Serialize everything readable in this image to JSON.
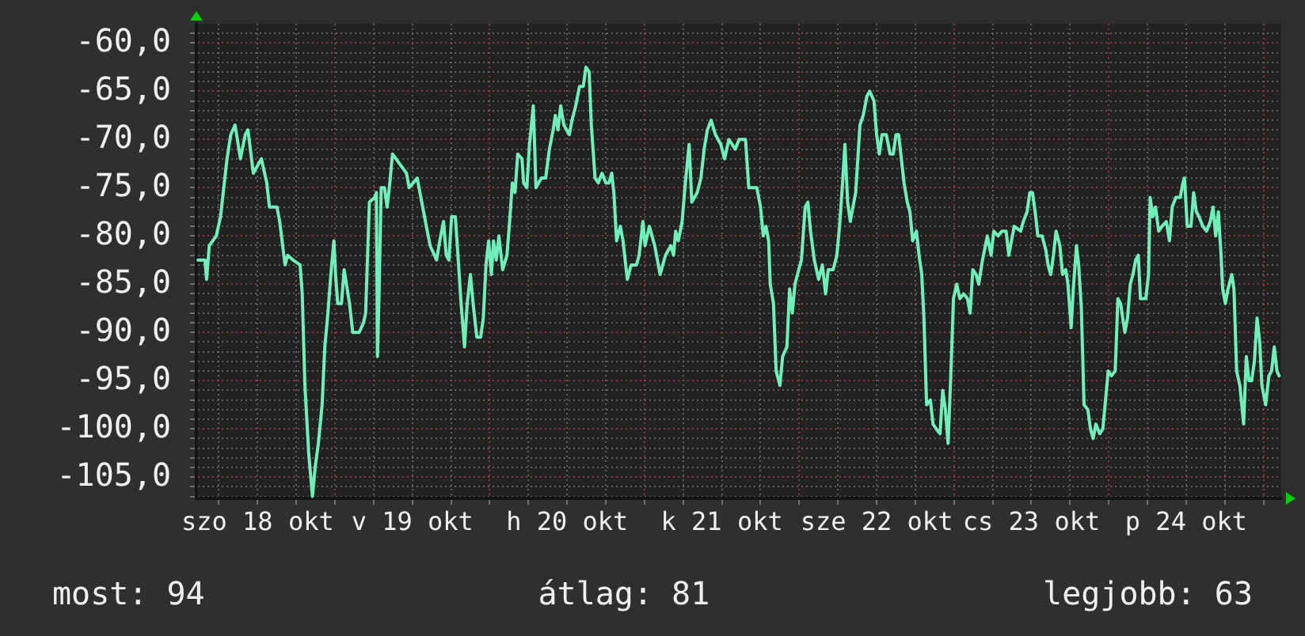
{
  "chart_data": {
    "type": "line",
    "color": "#70f0b8",
    "grid": true,
    "annotations": [
      "most: 94",
      "átlag: 81",
      "legjobb: 63"
    ],
    "xlim": [
      "--10-18T02:30",
      "--10-25T02:45"
    ],
    "xticks": [
      {
        "value": "--10-18T06:00",
        "label": null
      },
      {
        "value": "--10-18T12:00",
        "label": "szo 18 okt"
      },
      {
        "value": "--10-18T18:00",
        "label": null
      },
      {
        "value": "--10-19T00:00",
        "label": null
      },
      {
        "value": "--10-19T06:00",
        "label": null
      },
      {
        "value": "--10-19T12:00",
        "label": "v 19 okt"
      },
      {
        "value": "--10-19T18:00",
        "label": null
      },
      {
        "value": "--10-20T00:00",
        "label": null
      },
      {
        "value": "--10-20T06:00",
        "label": null
      },
      {
        "value": "--10-20T12:00",
        "label": "h 20 okt"
      },
      {
        "value": "--10-20T18:00",
        "label": null
      },
      {
        "value": "--10-21T00:00",
        "label": null
      },
      {
        "value": "--10-21T06:00",
        "label": null
      },
      {
        "value": "--10-21T12:00",
        "label": "k 21 okt"
      },
      {
        "value": "--10-21T18:00",
        "label": null
      },
      {
        "value": "--10-22T00:00",
        "label": null
      },
      {
        "value": "--10-22T06:00",
        "label": null
      },
      {
        "value": "--10-22T12:00",
        "label": "sze 22 okt"
      },
      {
        "value": "--10-22T18:00",
        "label": null
      },
      {
        "value": "--10-23T00:00",
        "label": null
      },
      {
        "value": "--10-23T06:00",
        "label": null
      },
      {
        "value": "--10-23T12:00",
        "label": "cs 23 okt"
      },
      {
        "value": "--10-23T18:00",
        "label": null
      },
      {
        "value": "--10-24T00:00",
        "label": null
      },
      {
        "value": "--10-24T06:00",
        "label": null
      },
      {
        "value": "--10-24T12:00",
        "label": "p 24 okt"
      },
      {
        "value": "--10-24T18:00",
        "label": null
      },
      {
        "value": "--10-25T00:00",
        "label": null
      }
    ],
    "ylim": [
      -107.2,
      -58
    ],
    "yticks": [
      {
        "value": -107,
        "label": null
      },
      {
        "value": -106,
        "label": null
      },
      {
        "value": -105,
        "label": "-105,0"
      },
      {
        "value": -104,
        "label": null
      },
      {
        "value": -103,
        "label": null
      },
      {
        "value": -102,
        "label": null
      },
      {
        "value": -101,
        "label": null
      },
      {
        "value": -100,
        "label": "-100,0"
      },
      {
        "value": -99,
        "label": null
      },
      {
        "value": -98,
        "label": null
      },
      {
        "value": -97,
        "label": null
      },
      {
        "value": -96,
        "label": null
      },
      {
        "value": -95,
        "label": "-95,0"
      },
      {
        "value": -94,
        "label": null
      },
      {
        "value": -93,
        "label": null
      },
      {
        "value": -92,
        "label": null
      },
      {
        "value": -91,
        "label": null
      },
      {
        "value": -90,
        "label": "-90,0"
      },
      {
        "value": -89,
        "label": null
      },
      {
        "value": -88,
        "label": null
      },
      {
        "value": -87,
        "label": null
      },
      {
        "value": -86,
        "label": null
      },
      {
        "value": -85,
        "label": "-85,0"
      },
      {
        "value": -84,
        "label": null
      },
      {
        "value": -83,
        "label": null
      },
      {
        "value": -82,
        "label": null
      },
      {
        "value": -81,
        "label": null
      },
      {
        "value": -80,
        "label": "-80,0"
      },
      {
        "value": -79,
        "label": null
      },
      {
        "value": -78,
        "label": null
      },
      {
        "value": -77,
        "label": null
      },
      {
        "value": -76,
        "label": null
      },
      {
        "value": -75,
        "label": "-75,0"
      },
      {
        "value": -74,
        "label": null
      },
      {
        "value": -73,
        "label": null
      },
      {
        "value": -72,
        "label": null
      },
      {
        "value": -71,
        "label": null
      },
      {
        "value": -70,
        "label": "-70,0"
      },
      {
        "value": -69,
        "label": null
      },
      {
        "value": -68,
        "label": null
      },
      {
        "value": -67,
        "label": null
      },
      {
        "value": -66,
        "label": null
      },
      {
        "value": -65,
        "label": "-65,0"
      },
      {
        "value": -64,
        "label": null
      },
      {
        "value": -63,
        "label": null
      },
      {
        "value": -62,
        "label": null
      },
      {
        "value": -61,
        "label": null
      },
      {
        "value": -60,
        "label": "-60,0"
      },
      {
        "value": -59,
        "label": null
      }
    ],
    "x": [
      "--10-18T02:45",
      "--10-18T03:50",
      "--10-18T04:05",
      "--10-18T04:30",
      "--10-18T05:35",
      "--10-18T06:15",
      "--10-18T07:15",
      "--10-18T07:50",
      "--10-18T08:30",
      "--10-18T09:20",
      "--10-18T10:05",
      "--10-18T10:30",
      "--10-18T11:20",
      "--10-18T12:35",
      "--10-18T13:25",
      "--10-18T13:50",
      "--10-18T15:00",
      "--10-18T15:25",
      "--10-18T16:15",
      "--10-18T16:40",
      "--10-18T17:30",
      "--10-18T18:35",
      "--10-18T18:55",
      "--10-18T19:20",
      "--10-18T19:55",
      "--10-18T20:30",
      "--10-18T20:55",
      "--10-18T21:25",
      "--10-18T22:00",
      "--10-18T22:25",
      "--10-18T22:50",
      "--10-18T23:25",
      "--10-18T23:50",
      "--10-19T00:05",
      "--10-19T00:25",
      "--10-19T01:00",
      "--10-19T01:25",
      "--10-19T02:15",
      "--10-19T02:45",
      "--10-19T03:45",
      "--10-19T04:25",
      "--10-19T04:45",
      "--10-19T05:20",
      "--10-19T06:10",
      "--10-19T06:25",
      "--10-19T06:35",
      "--10-19T06:50",
      "--10-19T07:10",
      "--10-19T07:40",
      "--10-19T08:05",
      "--10-19T08:30",
      "--10-19T08:55",
      "--10-19T10:00",
      "--10-19T11:05",
      "--10-19T11:30",
      "--10-19T12:45",
      "--10-19T13:10",
      "--10-19T14:10",
      "--10-19T14:45",
      "--10-19T15:45",
      "--10-19T16:15",
      "--10-19T16:50",
      "--10-19T17:15",
      "--10-19T17:40",
      "--10-19T18:05",
      "--10-19T18:40",
      "--10-19T19:10",
      "--10-19T19:30",
      "--10-19T20:05",
      "--10-19T20:30",
      "--10-19T21:00",
      "--10-19T21:25",
      "--10-19T22:00",
      "--10-19T22:35",
      "--10-19T23:00",
      "--10-19T23:25",
      "--10-19T23:50",
      "--10-20T00:15",
      "--10-20T00:35",
      "--10-20T01:00",
      "--10-20T01:25",
      "--10-20T02:00",
      "--10-20T02:40",
      "--10-20T03:05",
      "--10-20T03:30",
      "--10-20T03:55",
      "--10-20T04:20",
      "--10-20T05:00",
      "--10-20T05:15",
      "--10-20T05:45",
      "--10-20T06:10",
      "--10-20T06:45",
      "--10-20T07:10",
      "--10-20T08:00",
      "--10-20T08:40",
      "--10-20T09:15",
      "--10-20T09:50",
      "--10-20T10:10",
      "--10-20T10:35",
      "--10-20T11:00",
      "--10-20T11:30",
      "--10-20T12:20",
      "--10-20T12:45",
      "--10-20T13:20",
      "--10-20T13:55",
      "--10-20T14:30",
      "--10-20T14:55",
      "--10-20T15:25",
      "--10-20T15:45",
      "--10-20T16:20",
      "--10-20T16:50",
      "--10-20T17:25",
      "--10-20T18:00",
      "--10-20T18:30",
      "--10-20T18:55",
      "--10-20T19:15",
      "--10-20T19:40",
      "--10-20T20:15",
      "--10-20T20:40",
      "--10-20T21:20",
      "--10-20T21:55",
      "--10-20T22:45",
      "--10-20T23:10",
      "--10-20T23:45",
      "--10-21T00:05",
      "--10-21T00:45",
      "--10-21T01:35",
      "--10-21T02:25",
      "--10-21T03:15",
      "--10-21T04:05",
      "--10-21T04:30",
      "--10-21T04:50",
      "--10-21T05:15",
      "--10-21T05:50",
      "--10-21T06:20",
      "--10-21T06:55",
      "--10-21T07:20",
      "--10-21T08:10",
      "--10-21T08:45",
      "--10-21T09:15",
      "--10-21T09:45",
      "--10-21T10:20",
      "--10-21T11:00",
      "--10-21T11:50",
      "--10-21T12:25",
      "--10-21T13:05",
      "--10-21T14:05",
      "--10-21T14:40",
      "--10-21T15:40",
      "--10-21T16:10",
      "--10-21T17:25",
      "--10-21T18:00",
      "--10-21T18:25",
      "--10-21T18:50",
      "--10-21T19:15",
      "--10-21T19:30",
      "--10-21T20:00",
      "--10-21T20:25",
      "--10-21T21:00",
      "--10-21T21:25",
      "--10-21T22:05",
      "--10-21T22:30",
      "--10-21T22:55",
      "--10-21T23:20",
      "--10-21T23:55",
      "--10-22T00:20",
      "--10-22T00:55",
      "--10-22T01:20",
      "--10-22T01:45",
      "--10-22T02:20",
      "--10-22T03:00",
      "--10-22T03:35",
      "--10-22T04:05",
      "--10-22T04:30",
      "--10-22T05:15",
      "--10-22T05:50",
      "--10-22T06:15",
      "--10-22T06:40",
      "--10-22T07:05",
      "--10-22T07:30",
      "--10-22T07:55",
      "--10-22T08:20",
      "--10-22T08:45",
      "--10-22T09:25",
      "--10-22T09:55",
      "--10-22T10:30",
      "--10-22T10:55",
      "--10-22T11:35",
      "--10-22T12:00",
      "--10-22T12:25",
      "--10-22T12:50",
      "--10-22T13:30",
      "--10-22T14:05",
      "--10-22T14:35",
      "--10-22T15:00",
      "--10-22T15:25",
      "--10-22T15:50",
      "--10-22T16:15",
      "--10-22T16:45",
      "--10-22T17:10",
      "--10-22T17:35",
      "--10-22T18:10",
      "--10-22T18:35",
      "--10-22T19:00",
      "--10-22T19:20",
      "--10-22T19:45",
      "--10-22T20:20",
      "--10-22T20:45",
      "--10-22T21:15",
      "--10-22T21:50",
      "--10-22T22:15",
      "--10-22T22:40",
      "--10-22T23:05",
      "--10-22T23:30",
      "--10-22T23:55",
      "--10-23T00:25",
      "--10-23T00:55",
      "--10-23T01:30",
      "--10-23T02:05",
      "--10-23T02:30",
      "--10-23T02:55",
      "--10-23T03:25",
      "--10-23T03:50",
      "--10-23T04:25",
      "--10-23T05:10",
      "--10-23T05:45",
      "--10-23T06:10",
      "--10-23T06:50",
      "--10-23T07:25",
      "--10-23T08:05",
      "--10-23T08:30",
      "--10-23T08:55",
      "--10-23T09:20",
      "--10-23T10:20",
      "--10-23T10:45",
      "--10-23T11:20",
      "--10-23T11:45",
      "--10-23T12:10",
      "--10-23T12:35",
      "--10-23T13:00",
      "--10-23T13:40",
      "--10-23T14:15",
      "--10-23T14:35",
      "--10-23T15:00",
      "--10-23T15:25",
      "--10-23T15:50",
      "--10-23T16:25",
      "--10-23T16:50",
      "--10-23T17:20",
      "--10-23T17:40",
      "--10-23T18:10",
      "--10-23T18:30",
      "--10-23T19:00",
      "--10-23T19:20",
      "--10-23T19:45",
      "--10-23T20:10",
      "--10-23T20:45",
      "--10-23T21:10",
      "--10-23T21:35",
      "--10-23T22:00",
      "--10-23T22:35",
      "--10-23T23:05",
      "--10-23T23:30",
      "--10-23T23:55",
      "--10-24T00:25",
      "--10-24T01:00",
      "--10-24T01:25",
      "--10-24T01:50",
      "--10-24T02:30",
      "--10-24T02:55",
      "--10-24T03:20",
      "--10-24T03:45",
      "--10-24T04:10",
      "--10-24T04:35",
      "--10-24T04:55",
      "--10-24T05:45",
      "--10-24T06:10",
      "--10-24T06:25",
      "--10-24T06:50",
      "--10-24T07:15",
      "--10-24T07:45",
      "--10-24T08:15",
      "--10-24T08:55",
      "--10-24T09:25",
      "--10-24T09:50",
      "--10-24T10:25",
      "--10-24T11:05",
      "--10-24T11:30",
      "--10-24T11:45",
      "--10-24T12:10",
      "--10-24T12:45",
      "--10-24T13:10",
      "--10-24T13:35",
      "--10-24T14:00",
      "--10-24T14:35",
      "--10-24T15:10",
      "--10-24T15:45",
      "--10-24T16:10",
      "--10-24T16:35",
      "--10-24T17:00",
      "--10-24T17:25",
      "--10-24T17:40",
      "--10-24T18:05",
      "--10-24T18:30",
      "--10-24T19:05",
      "--10-24T19:25",
      "--10-24T19:50",
      "--10-24T20:20",
      "--10-24T20:55",
      "--10-24T21:20",
      "--10-24T21:45",
      "--10-24T22:10",
      "--10-24T22:35",
      "--10-24T23:00",
      "--10-24T23:25",
      "--10-24T23:45",
      "--10-25T00:20",
      "--10-25T00:50",
      "--10-25T01:15",
      "--10-25T01:40",
      "--10-25T02:05",
      "--10-25T02:25"
    ],
    "values": [
      -82.5,
      -82.5,
      -84.5,
      -81,
      -80,
      -78,
      -72,
      -69.5,
      -68.5,
      -72,
      -69.5,
      -69,
      -73.5,
      -72,
      -74.5,
      -77,
      -77,
      -78.5,
      -83,
      -82,
      -82.5,
      -83,
      -86,
      -95.5,
      -102.5,
      -107,
      -104,
      -101.5,
      -97.5,
      -91.5,
      -88.5,
      -83.5,
      -80.5,
      -84,
      -87,
      -87,
      -83.5,
      -87,
      -90,
      -90,
      -89,
      -88,
      -76.5,
      -76,
      -75.5,
      -92.5,
      -86,
      -75,
      -75,
      -77,
      -74.5,
      -71.5,
      -72.5,
      -73.5,
      -75,
      -74,
      -75.5,
      -79,
      -81,
      -82.5,
      -80.5,
      -78.5,
      -82,
      -82.5,
      -78,
      -78,
      -83,
      -86.5,
      -91.5,
      -87,
      -84,
      -87,
      -90.5,
      -90.5,
      -88.5,
      -83,
      -80.5,
      -84,
      -80.5,
      -82.5,
      -80,
      -83.5,
      -82,
      -78.5,
      -74.5,
      -75.5,
      -71.5,
      -72,
      -74.5,
      -75,
      -70.5,
      -66.5,
      -75,
      -74,
      -74,
      -71,
      -69,
      -67.5,
      -69,
      -66.5,
      -68.5,
      -69.5,
      -68,
      -66.5,
      -64.5,
      -64.5,
      -62.5,
      -63,
      -68.5,
      -74,
      -74.5,
      -73.5,
      -74.5,
      -74.5,
      -73.5,
      -75.5,
      -80.5,
      -79,
      -80.5,
      -84.5,
      -83,
      -83,
      -82,
      -78.5,
      -81,
      -79,
      -81,
      -84,
      -82,
      -81,
      -82,
      -79.5,
      -80.5,
      -78.5,
      -74.5,
      -70.5,
      -76.5,
      -75.5,
      -74,
      -71,
      -69,
      -68,
      -69.5,
      -70.5,
      -72,
      -70,
      -71,
      -70,
      -70,
      -75,
      -75,
      -77,
      -80,
      -79,
      -80.5,
      -85,
      -87,
      -94,
      -95.5,
      -92.5,
      -91.5,
      -85.5,
      -88,
      -85,
      -83.5,
      -82.5,
      -77,
      -76.5,
      -79.5,
      -82.5,
      -84.5,
      -83,
      -86,
      -83.5,
      -83.5,
      -82,
      -79,
      -75,
      -70.5,
      -76.5,
      -78.5,
      -77,
      -75.5,
      -68.5,
      -67.5,
      -65.5,
      -65,
      -66,
      -69.5,
      -71.5,
      -69.5,
      -69.5,
      -71.5,
      -71.5,
      -69.5,
      -69.5,
      -72,
      -74.5,
      -76.5,
      -77.5,
      -80.5,
      -79.5,
      -82,
      -84,
      -88.5,
      -97.5,
      -97,
      -99.5,
      -100,
      -100.5,
      -96,
      -98,
      -101.5,
      -94.5,
      -86.5,
      -85,
      -86.5,
      -86,
      -86.5,
      -88,
      -83.5,
      -84,
      -85,
      -82.5,
      -80,
      -82,
      -79.5,
      -80,
      -79.5,
      -79.5,
      -82,
      -80.5,
      -79,
      -79.5,
      -78.5,
      -77.5,
      -75.5,
      -75.5,
      -77.5,
      -80,
      -80,
      -81.5,
      -83,
      -84,
      -82,
      -79.5,
      -81,
      -84,
      -83.5,
      -85,
      -89.5,
      -85.5,
      -81,
      -83,
      -87.5,
      -97.5,
      -98,
      -100,
      -101,
      -99.5,
      -100.5,
      -100,
      -97,
      -94,
      -94.5,
      -94,
      -86.5,
      -87,
      -90,
      -88.5,
      -85,
      -84,
      -82.5,
      -82,
      -86.5,
      -86.5,
      -84,
      -76,
      -78,
      -77,
      -79.5,
      -79,
      -78.5,
      -80.5,
      -77,
      -76,
      -76,
      -74.5,
      -74,
      -79,
      -79,
      -75.5,
      -77.5,
      -78,
      -79,
      -79.5,
      -78.5,
      -77,
      -80,
      -77.5,
      -82,
      -85.5,
      -87,
      -85.5,
      -84,
      -85.5,
      -94,
      -95.5,
      -99.5,
      -92.5,
      -95,
      -95,
      -93,
      -88.5,
      -91,
      -95.5,
      -97.5,
      -94.5,
      -94,
      -91.5,
      -94,
      -94.5
    ]
  }
}
